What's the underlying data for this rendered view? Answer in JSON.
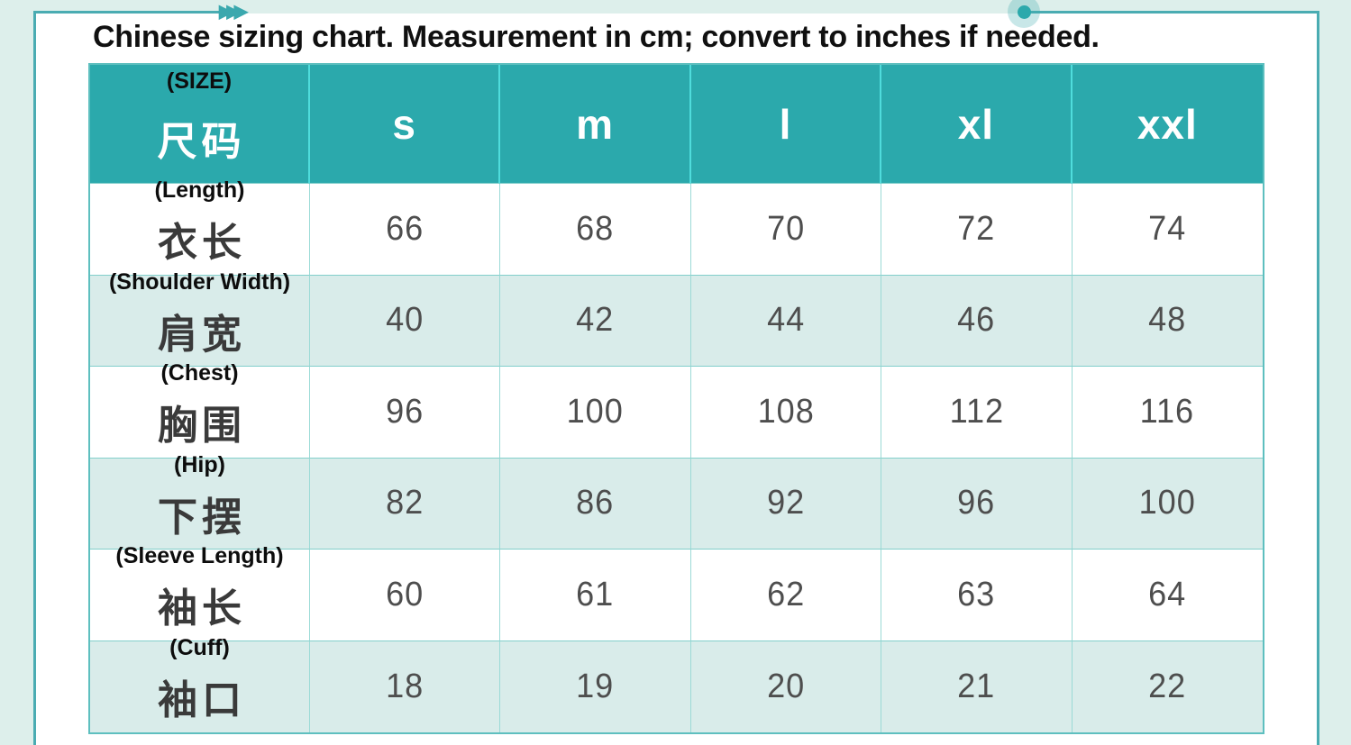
{
  "title": "Chinese sizing chart. Measurement in cm; convert to inches if needed.",
  "icons": {
    "arrows_glyph": "▶▶▶"
  },
  "colors": {
    "header_teal": "#2ba9ac",
    "frame_teal": "#4aacb2",
    "row_tint": "#d9ecea",
    "page_background": "#ddefeb",
    "grid_line": "#82cfcb",
    "header_divider": "#4fdcdc",
    "number_text": "#4e4e4e",
    "annotation_text": "#0d0d0d"
  },
  "table": {
    "header": {
      "annotation": "(SIZE)",
      "label_cn": "尺码",
      "sizes": [
        "s",
        "m",
        "l",
        "xl",
        "xxl"
      ]
    },
    "rows": [
      {
        "annotation": "(Length)",
        "label_cn": "衣长",
        "values": [
          "66",
          "68",
          "70",
          "72",
          "74"
        ]
      },
      {
        "annotation": "(Shoulder Width)",
        "label_cn": "肩宽",
        "values": [
          "40",
          "42",
          "44",
          "46",
          "48"
        ]
      },
      {
        "annotation": "(Chest)",
        "label_cn": "胸围",
        "values": [
          "96",
          "100",
          "108",
          "112",
          "116"
        ]
      },
      {
        "annotation": "(Hip)",
        "label_cn": "下摆",
        "values": [
          "82",
          "86",
          "92",
          "96",
          "100"
        ]
      },
      {
        "annotation": "(Sleeve Length)",
        "label_cn": "袖长",
        "values": [
          "60",
          "61",
          "62",
          "63",
          "64"
        ]
      },
      {
        "annotation": "(Cuff)",
        "label_cn": "袖口",
        "values": [
          "18",
          "19",
          "20",
          "21",
          "22"
        ]
      }
    ]
  },
  "chart_data": {
    "type": "table",
    "title": "Chinese sizing chart. Measurement in cm; convert to inches if needed.",
    "units": "cm",
    "columns": [
      "尺码 (SIZE)",
      "s",
      "m",
      "l",
      "xl",
      "xxl"
    ],
    "rows": [
      {
        "label_en": "(Length)",
        "label_cn": "衣长",
        "values": [
          66,
          68,
          70,
          72,
          74
        ]
      },
      {
        "label_en": "(Shoulder Width)",
        "label_cn": "肩宽",
        "values": [
          40,
          42,
          44,
          46,
          48
        ]
      },
      {
        "label_en": "(Chest)",
        "label_cn": "胸围",
        "values": [
          96,
          100,
          108,
          112,
          116
        ]
      },
      {
        "label_en": "(Hip)",
        "label_cn": "下摆",
        "values": [
          82,
          86,
          92,
          96,
          100
        ]
      },
      {
        "label_en": "(Sleeve Length)",
        "label_cn": "袖长",
        "values": [
          60,
          61,
          62,
          63,
          64
        ]
      },
      {
        "label_en": "(Cuff)",
        "label_cn": "袖口",
        "values": [
          18,
          19,
          20,
          21,
          22
        ]
      }
    ]
  }
}
